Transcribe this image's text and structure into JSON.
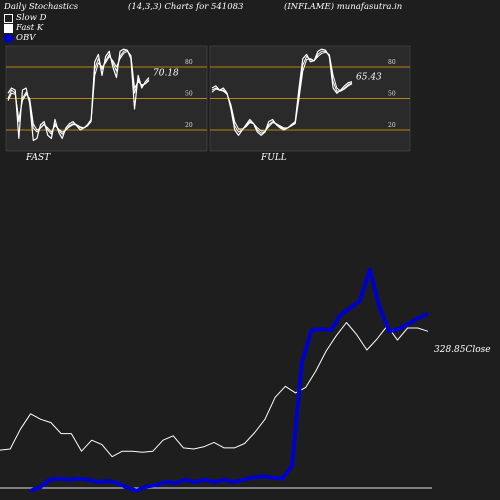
{
  "header": {
    "title": "Daily Stochastics",
    "params": "(14,3,3) Charts for 541083",
    "symbol": "(INFLAME) munafasutra.in"
  },
  "legend": {
    "slow_d": "Slow  D",
    "fast_k": "Fast K",
    "obv": "OBV"
  },
  "colors": {
    "background": "#1e1e1e",
    "panel": "#2a2a2a",
    "level_line": "#b8860b",
    "stoch_line": "#ffffff",
    "obv_line": "#0000cc",
    "price_line": "#ffffff"
  },
  "chart_data": [
    {
      "type": "line",
      "panel": "FAST",
      "ylim": [
        0,
        100
      ],
      "levels": [
        20,
        50,
        80
      ],
      "last_value_label": "70.18",
      "series": [
        {
          "values": [
            55,
            60,
            58,
            12,
            58,
            60,
            45,
            10,
            12,
            25,
            28,
            15,
            12,
            30,
            18,
            12,
            22,
            26,
            28,
            24,
            20,
            22,
            25,
            30,
            85,
            92,
            72,
            90,
            95,
            80,
            70,
            95,
            97,
            96,
            88,
            40,
            72,
            60,
            66,
            70
          ]
        },
        {
          "values": [
            50,
            58,
            55,
            28,
            50,
            56,
            48,
            22,
            18,
            22,
            26,
            20,
            16,
            26,
            20,
            16,
            20,
            24,
            26,
            25,
            22,
            22,
            24,
            30,
            78,
            88,
            78,
            86,
            92,
            84,
            76,
            90,
            95,
            96,
            90,
            55,
            68,
            62,
            64,
            68
          ]
        },
        {
          "values": [
            48,
            55,
            54,
            30,
            48,
            54,
            50,
            26,
            20,
            22,
            25,
            22,
            18,
            24,
            21,
            18,
            20,
            23,
            25,
            25,
            23,
            22,
            24,
            28,
            72,
            84,
            80,
            84,
            90,
            86,
            80,
            88,
            93,
            95,
            91,
            60,
            66,
            63,
            64,
            67
          ]
        }
      ]
    },
    {
      "type": "line",
      "panel": "FULL",
      "ylim": [
        0,
        100
      ],
      "levels": [
        20,
        50,
        80
      ],
      "last_value_label": "65.43",
      "series": [
        {
          "values": [
            60,
            62,
            58,
            60,
            55,
            40,
            20,
            15,
            20,
            25,
            30,
            26,
            18,
            15,
            18,
            28,
            30,
            25,
            22,
            20,
            22,
            25,
            28,
            60,
            88,
            92,
            85,
            86,
            95,
            97,
            96,
            90,
            60,
            55,
            58,
            62,
            65,
            66
          ]
        },
        {
          "values": [
            58,
            60,
            58,
            58,
            54,
            42,
            24,
            18,
            20,
            24,
            28,
            26,
            20,
            17,
            18,
            25,
            28,
            26,
            23,
            21,
            22,
            24,
            27,
            55,
            82,
            90,
            87,
            86,
            92,
            95,
            95,
            91,
            66,
            57,
            57,
            60,
            63,
            65
          ]
        },
        {
          "values": [
            56,
            59,
            58,
            57,
            54,
            44,
            28,
            21,
            21,
            23,
            27,
            26,
            22,
            19,
            19,
            23,
            27,
            26,
            24,
            22,
            22,
            24,
            26,
            50,
            76,
            87,
            88,
            86,
            90,
            93,
            94,
            92,
            72,
            60,
            57,
            59,
            62,
            64
          ]
        }
      ]
    },
    {
      "type": "line",
      "panel": "OBV/Price",
      "price_last_label": "328.85",
      "price_label_suffix": "Close",
      "series": [
        {
          "name": "OBV",
          "values": [
            2,
            5,
            12,
            13,
            12,
            13,
            12,
            10,
            11,
            9,
            5,
            2,
            6,
            7,
            10,
            9,
            12,
            10,
            12,
            10,
            12,
            10,
            12,
            14,
            15,
            14,
            13,
            25,
            118,
            148,
            149,
            148,
            162,
            168,
            175,
            203,
            169,
            147,
            149,
            154,
            159,
            163
          ]
        },
        {
          "values": [
            39,
            40,
            58,
            72,
            67,
            64,
            54,
            54,
            38,
            48,
            44,
            33,
            38,
            38,
            37,
            38,
            48,
            52,
            41,
            40,
            42,
            46,
            41,
            41,
            45,
            55,
            67,
            87,
            97,
            91,
            96,
            111,
            129,
            143,
            155,
            144,
            130,
            140,
            152,
            139,
            150,
            150,
            147
          ]
        }
      ]
    }
  ]
}
